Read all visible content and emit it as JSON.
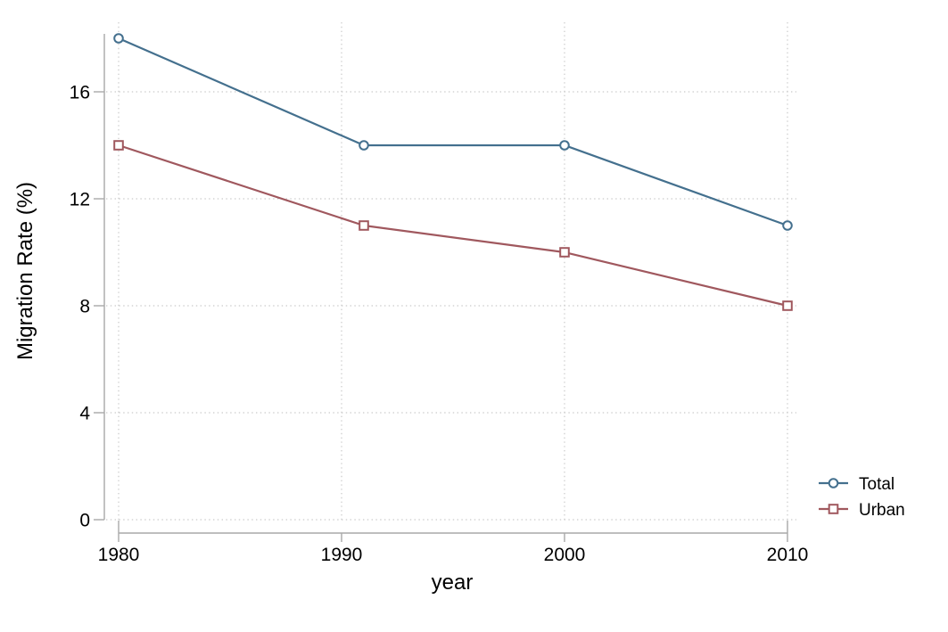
{
  "chart_data": {
    "type": "line",
    "title": "",
    "xlabel": "year",
    "ylabel": "Migration Rate (%)",
    "x": [
      1980,
      1991,
      2000,
      2010
    ],
    "series": [
      {
        "name": "Total",
        "values": [
          18,
          14,
          14,
          11
        ],
        "color": "#44708E",
        "marker": "circle",
        "marker_fill": "hollow"
      },
      {
        "name": "Urban",
        "values": [
          14,
          11,
          10,
          8
        ],
        "color": "#A0585E",
        "marker": "square",
        "marker_fill": "hollow"
      }
    ],
    "x_ticks": [
      1980,
      1990,
      2000,
      2010
    ],
    "y_ticks": [
      0,
      4,
      8,
      12,
      16
    ],
    "xlim": [
      1980,
      2010
    ],
    "ylim": [
      0,
      18.6
    ],
    "grid": "dotted",
    "legend_position": "right-outside",
    "colors": {
      "background": "#ffffff",
      "axis": "#a9a9a9",
      "grid": "#c9c9c9",
      "text": "#000000"
    }
  }
}
